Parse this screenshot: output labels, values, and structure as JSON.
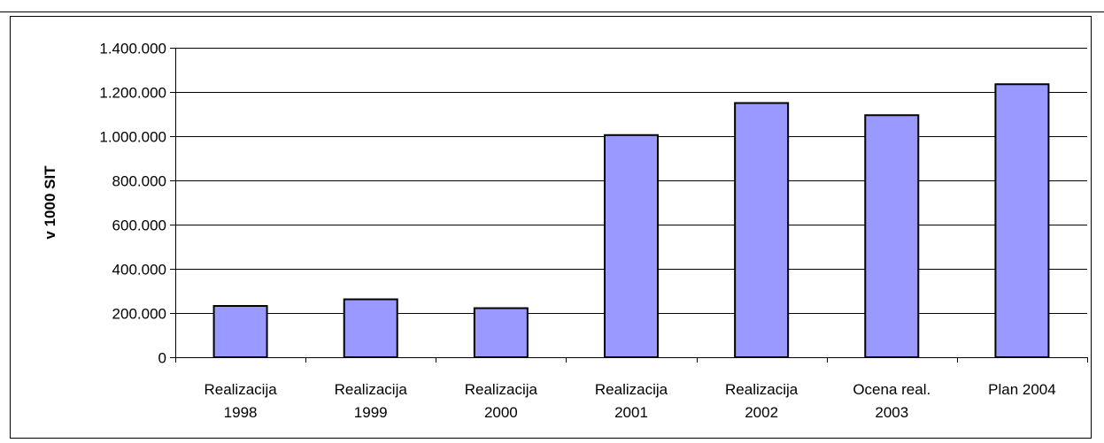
{
  "chart_data": {
    "type": "bar",
    "title": "",
    "xlabel": "",
    "ylabel": "v 1000 SIT",
    "categories": [
      [
        "Realizacija",
        "1998"
      ],
      [
        "Realizacija",
        "1999"
      ],
      [
        "Realizacija",
        "2000"
      ],
      [
        "Realizacija",
        "2001"
      ],
      [
        "Realizacija",
        "2002"
      ],
      [
        "Ocena real.",
        "2003"
      ],
      [
        "Plan 2004"
      ]
    ],
    "values": [
      232000,
      262000,
      222000,
      1005000,
      1150000,
      1095000,
      1235000
    ],
    "ylim": [
      0,
      1400000
    ],
    "yticks": [
      0,
      200000,
      400000,
      600000,
      800000,
      1000000,
      1200000,
      1400000
    ],
    "ytick_labels": [
      "0",
      "200.000",
      "400.000",
      "600.000",
      "800.000",
      "1.000.000",
      "1.200.000",
      "1.400.000"
    ],
    "grid": true,
    "bar_color": "#9999ff",
    "bar_edge_color": "#000000"
  }
}
